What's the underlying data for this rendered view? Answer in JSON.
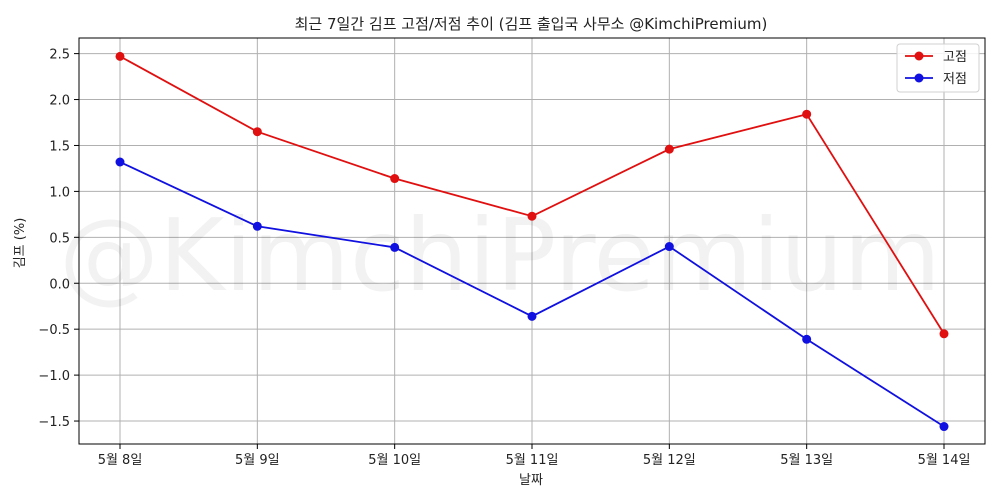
{
  "chart_data": {
    "type": "line",
    "title": "최근 7일간 김프 고점/저점 추이 (김프 출입국 사무소 @KimchiPremium)",
    "xlabel": "날짜",
    "ylabel": "김프 (%)",
    "watermark": "@KimchiPremium",
    "categories": [
      "5월 8일",
      "5월 9일",
      "5월 10일",
      "5월 11일",
      "5월 12일",
      "5월 13일",
      "5월 14일"
    ],
    "series": [
      {
        "name": "고점",
        "color": "#e01010",
        "values": [
          2.47,
          1.65,
          1.14,
          0.73,
          1.46,
          1.84,
          -0.55
        ]
      },
      {
        "name": "저점",
        "color": "#1010e0",
        "values": [
          1.32,
          0.62,
          0.39,
          -0.36,
          0.4,
          -0.61,
          -1.56
        ]
      }
    ],
    "yticks": [
      2.5,
      2.0,
      1.5,
      1.0,
      0.5,
      0.0,
      -0.5,
      -1.0,
      -1.5
    ],
    "ytick_labels": [
      "2.5",
      "2.0",
      "1.5",
      "1.0",
      "0.5",
      "0.0",
      "−0.5",
      "−1.0",
      "−1.5"
    ],
    "ylim": [
      -1.75,
      2.67
    ],
    "grid": true,
    "legend": "top-right"
  }
}
